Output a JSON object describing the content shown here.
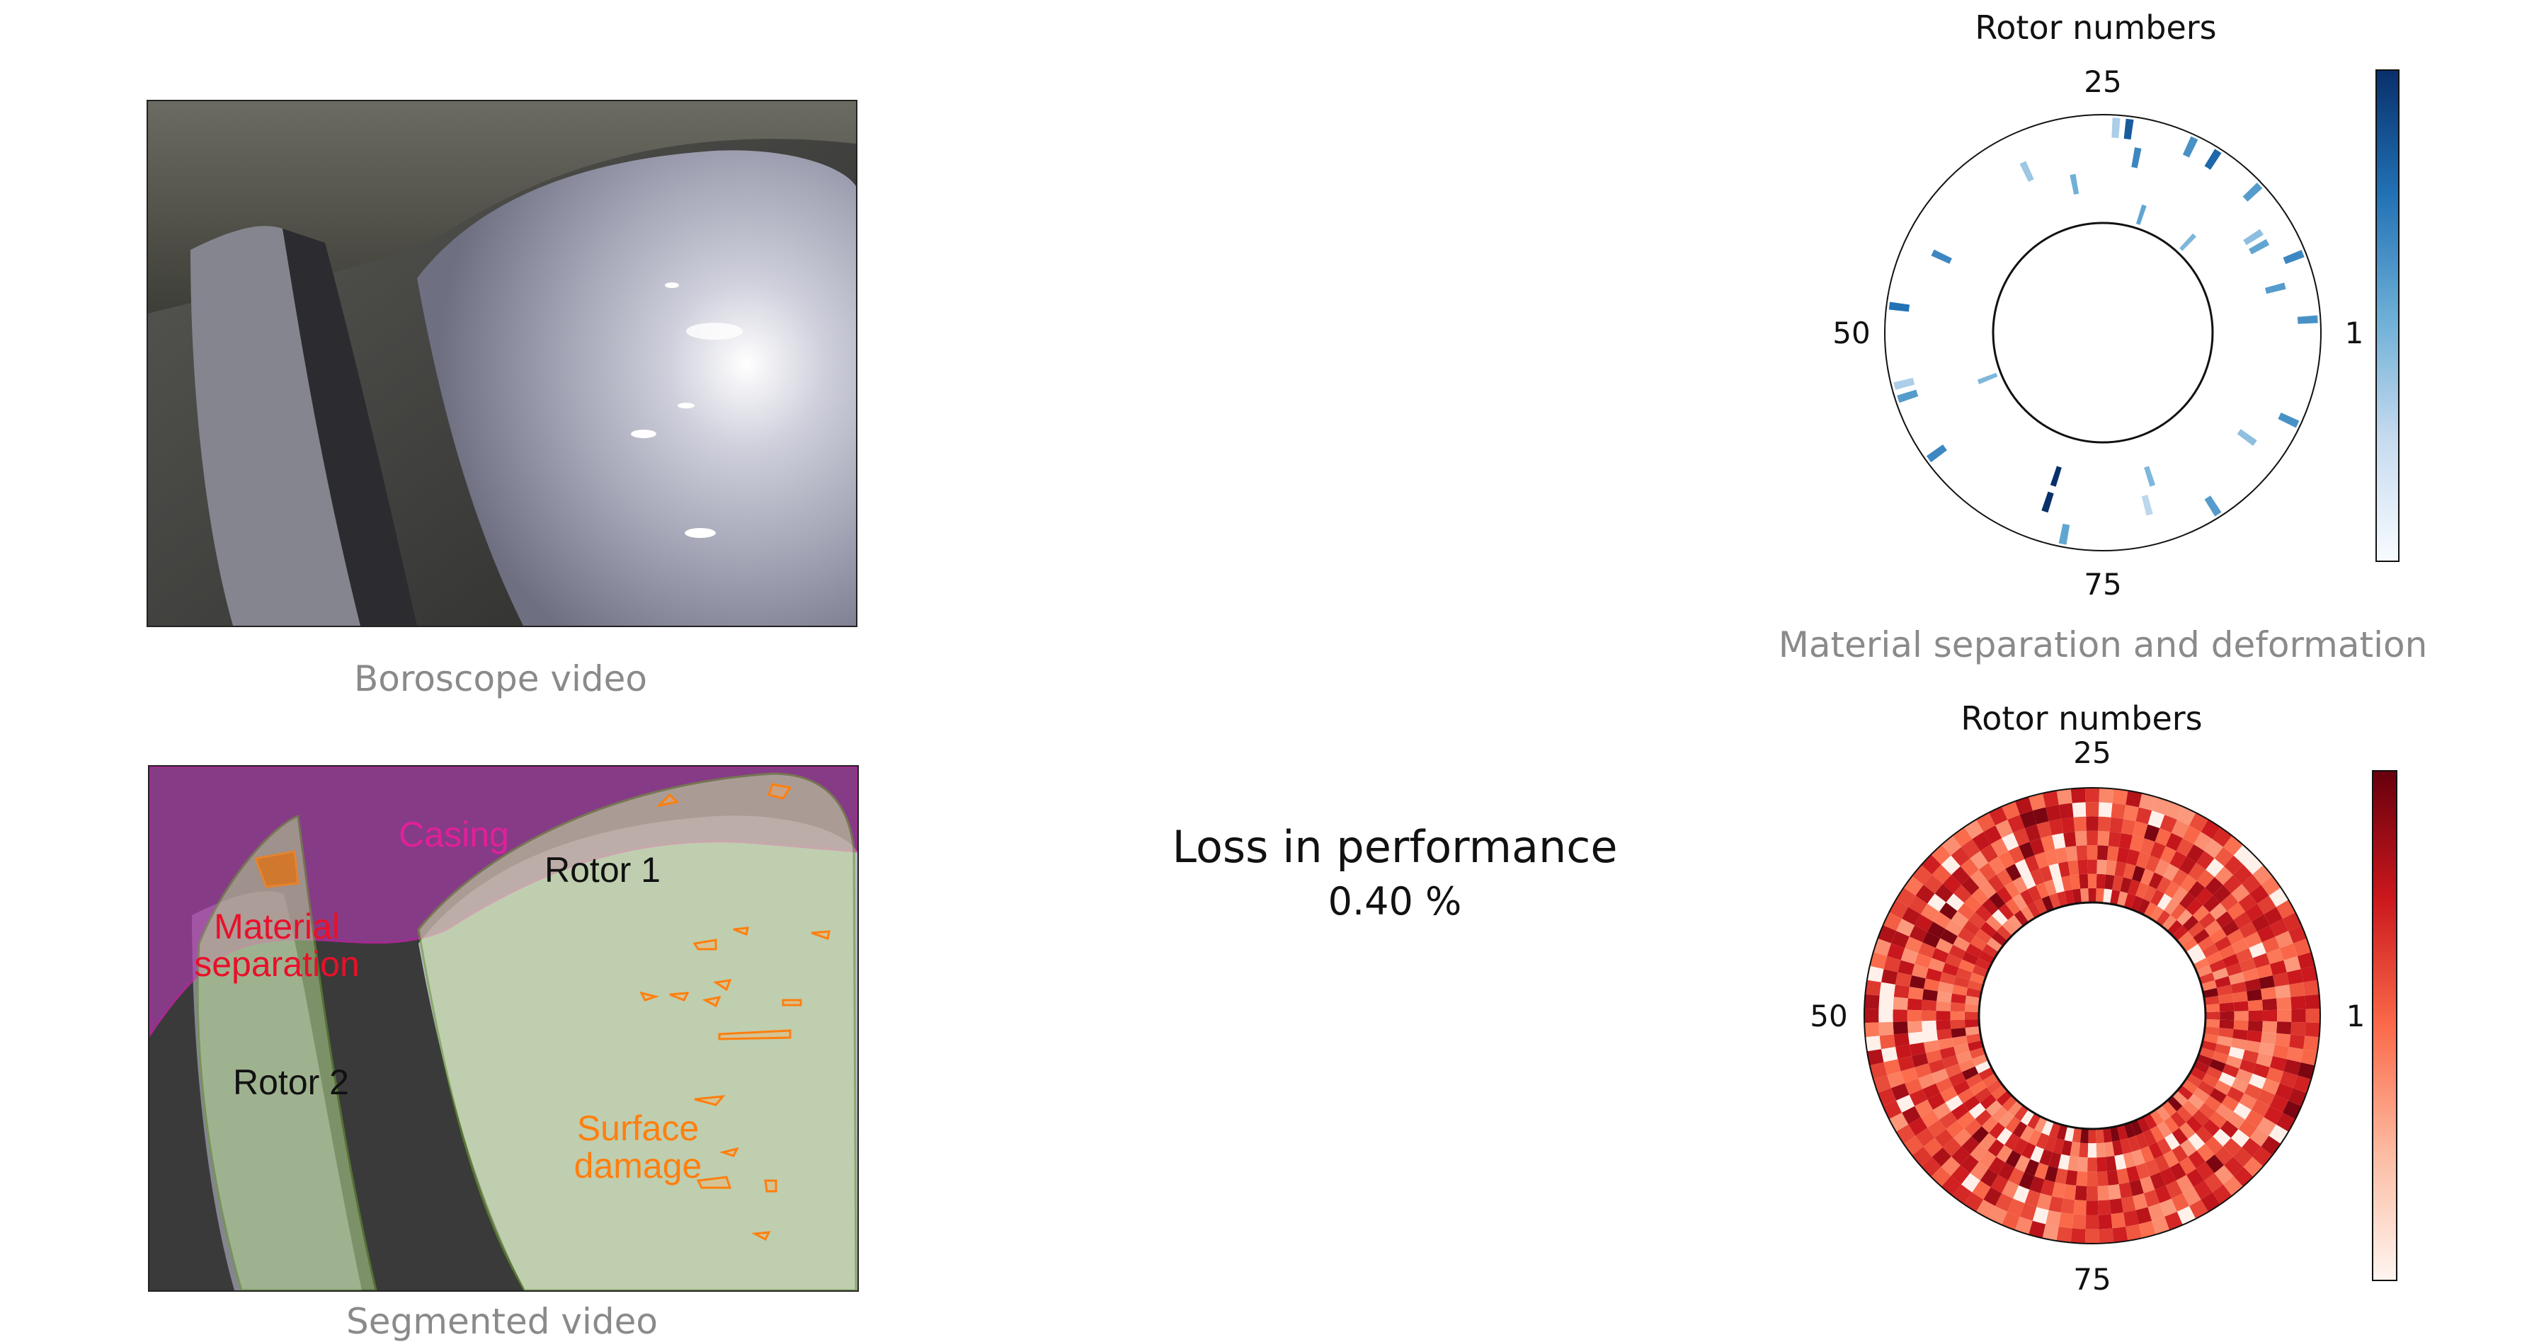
{
  "left_panels": {
    "top_caption": "Boroscope video",
    "bottom_caption": "Segmented video"
  },
  "annotations": {
    "casing": "Casing",
    "material_separation": "Material\nseparation",
    "rotor1": "Rotor 1",
    "rotor2": "Rotor 2",
    "surface_damage": "Surface\ndamage"
  },
  "metric": {
    "label": "Loss in performance",
    "value": "0.40 %"
  },
  "colors": {
    "blue_max": "#08306b",
    "red_max": "#67000d",
    "casing_overlay": "#c040c0",
    "rotor_overlay": "#b8d89a",
    "damage_outline": "#ff7f0e",
    "sep_text": "#e8102a",
    "casing_text": "#e0209a"
  },
  "chart_data": [
    {
      "type": "heatmap",
      "title": "Rotor numbers",
      "caption": "Material separation and deformation",
      "theta_ticks": [
        "1",
        "25",
        "50",
        "75"
      ],
      "colormap": "Blues",
      "cells": [
        {
          "blade": 2,
          "ring": 3,
          "value": 0.55
        },
        {
          "blade": 5,
          "ring": 2,
          "value": 0.5
        },
        {
          "blade": 7,
          "ring": 3,
          "value": 0.6
        },
        {
          "blade": 9,
          "ring": 2,
          "value": 0.45
        },
        {
          "blade": 10,
          "ring": 2,
          "value": 0.3
        },
        {
          "blade": 13,
          "ring": 3,
          "value": 0.5
        },
        {
          "blade": 14,
          "ring": 0,
          "value": 0.35
        },
        {
          "blade": 17,
          "ring": 3,
          "value": 0.75
        },
        {
          "blade": 19,
          "ring": 3,
          "value": 0.55
        },
        {
          "blade": 21,
          "ring": 0,
          "value": 0.45
        },
        {
          "blade": 23,
          "ring": 2,
          "value": 0.6
        },
        {
          "blade": 24,
          "ring": 3,
          "value": 0.8
        },
        {
          "blade": 25,
          "ring": 3,
          "value": 0.2
        },
        {
          "blade": 29,
          "ring": 1,
          "value": 0.4
        },
        {
          "blade": 33,
          "ring": 2,
          "value": 0.25
        },
        {
          "blade": 44,
          "ring": 2,
          "value": 0.6
        },
        {
          "blade": 49,
          "ring": 3,
          "value": 0.7
        },
        {
          "blade": 55,
          "ring": 3,
          "value": 0.2
        },
        {
          "blade": 56,
          "ring": 3,
          "value": 0.5
        },
        {
          "blade": 57,
          "ring": 0,
          "value": 0.35
        },
        {
          "blade": 61,
          "ring": 3,
          "value": 0.6
        },
        {
          "blade": 71,
          "ring": 1,
          "value": 1.0
        },
        {
          "blade": 71,
          "ring": 2,
          "value": 1.0
        },
        {
          "blade": 73,
          "ring": 3,
          "value": 0.45
        },
        {
          "blade": 80,
          "ring": 2,
          "value": 0.15
        },
        {
          "blade": 81,
          "ring": 1,
          "value": 0.35
        },
        {
          "blade": 85,
          "ring": 3,
          "value": 0.5
        },
        {
          "blade": 91,
          "ring": 2,
          "value": 0.3
        },
        {
          "blade": 94,
          "ring": 3,
          "value": 0.55
        }
      ]
    },
    {
      "type": "heatmap",
      "title": "Rotor numbers",
      "caption": "",
      "theta_ticks": [
        "1",
        "25",
        "50",
        "75"
      ],
      "colormap": "Reds",
      "blades": 100,
      "rings": 8,
      "note_values": "dense per-blade per-ring values, mostly 0.35-0.8"
    }
  ]
}
